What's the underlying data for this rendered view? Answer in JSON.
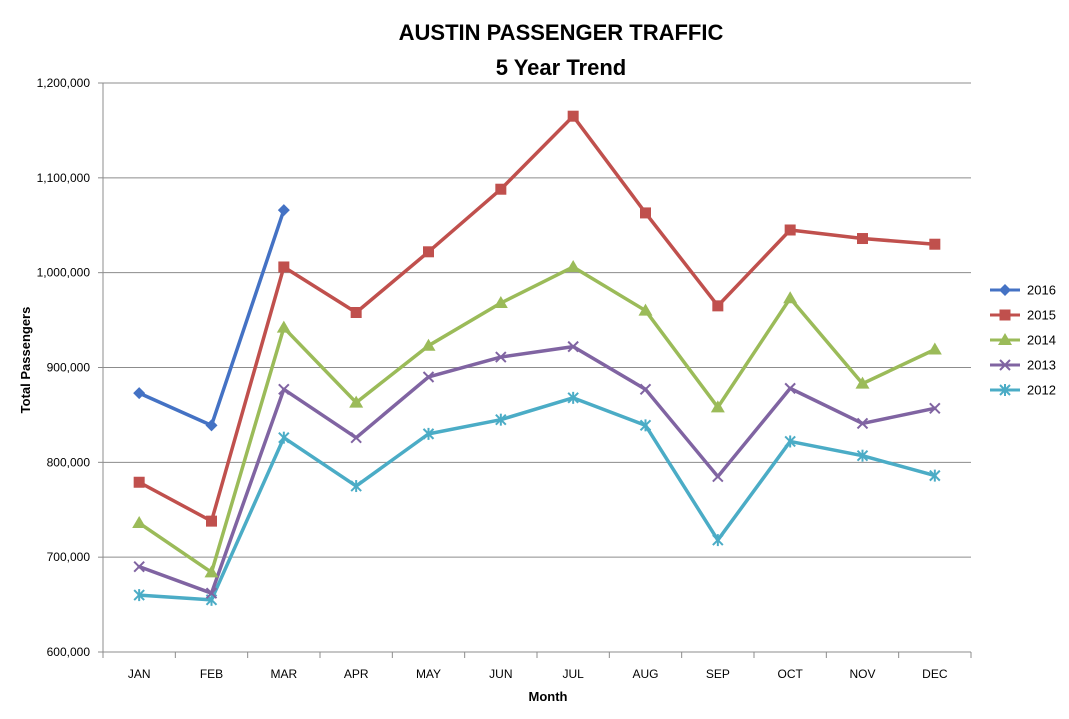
{
  "chart_data": {
    "type": "line",
    "title": "AUSTIN PASSENGER TRAFFIC",
    "subtitle": "5 Year Trend",
    "xlabel": "Month",
    "ylabel": "Total Passengers",
    "categories": [
      "JAN",
      "FEB",
      "MAR",
      "APR",
      "MAY",
      "JUN",
      "JUL",
      "AUG",
      "SEP",
      "OCT",
      "NOV",
      "DEC"
    ],
    "ylim": [
      600000,
      1200000
    ],
    "yticks": [
      600000,
      700000,
      800000,
      900000,
      1000000,
      1100000,
      1200000
    ],
    "ytick_labels": [
      "600,000",
      "700,000",
      "800,000",
      "900,000",
      "1,000,000",
      "1,100,000",
      "1,200,000"
    ],
    "grid": "horizontal",
    "legend_position": "right",
    "series": [
      {
        "name": "2016",
        "color": "#4472C4",
        "marker": "diamond",
        "values": [
          873000,
          839000,
          1066000,
          null,
          null,
          null,
          null,
          null,
          null,
          null,
          null,
          null
        ]
      },
      {
        "name": "2015",
        "color": "#C0504D",
        "marker": "square",
        "values": [
          779000,
          738000,
          1006000,
          958000,
          1022000,
          1088000,
          1165000,
          1063000,
          965000,
          1045000,
          1036000,
          1030000
        ]
      },
      {
        "name": "2014",
        "color": "#9BBB59",
        "marker": "triangle",
        "values": [
          736000,
          684000,
          942000,
          863000,
          923000,
          968000,
          1006000,
          960000,
          858000,
          973000,
          883000,
          919000
        ]
      },
      {
        "name": "2013",
        "color": "#8064A2",
        "marker": "x",
        "values": [
          690000,
          662000,
          877000,
          826000,
          890000,
          911000,
          922000,
          877000,
          785000,
          878000,
          841000,
          857000
        ]
      },
      {
        "name": "2012",
        "color": "#4BACC6",
        "marker": "star",
        "values": [
          660000,
          655000,
          826000,
          775000,
          830000,
          845000,
          868000,
          839000,
          718000,
          822000,
          807000,
          786000
        ]
      }
    ]
  }
}
